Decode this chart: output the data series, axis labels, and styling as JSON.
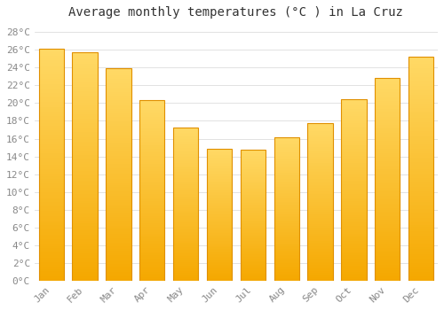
{
  "title": "Average monthly temperatures (°C ) in La Cruz",
  "months": [
    "Jan",
    "Feb",
    "Mar",
    "Apr",
    "May",
    "Jun",
    "Jul",
    "Aug",
    "Sep",
    "Oct",
    "Nov",
    "Dec"
  ],
  "values": [
    26.1,
    25.7,
    23.9,
    20.3,
    17.2,
    14.9,
    14.8,
    16.2,
    17.7,
    20.4,
    22.8,
    25.2
  ],
  "bar_color_bottom": "#F5A800",
  "bar_color_top": "#FFD966",
  "bar_edge_color": "#E09000",
  "background_color": "#FFFFFF",
  "grid_color": "#DDDDDD",
  "ylim": [
    0,
    29
  ],
  "ytick_step": 2,
  "title_fontsize": 10,
  "tick_fontsize": 8,
  "font_family": "monospace",
  "ytick_color": "#888888",
  "xtick_color": "#888888"
}
